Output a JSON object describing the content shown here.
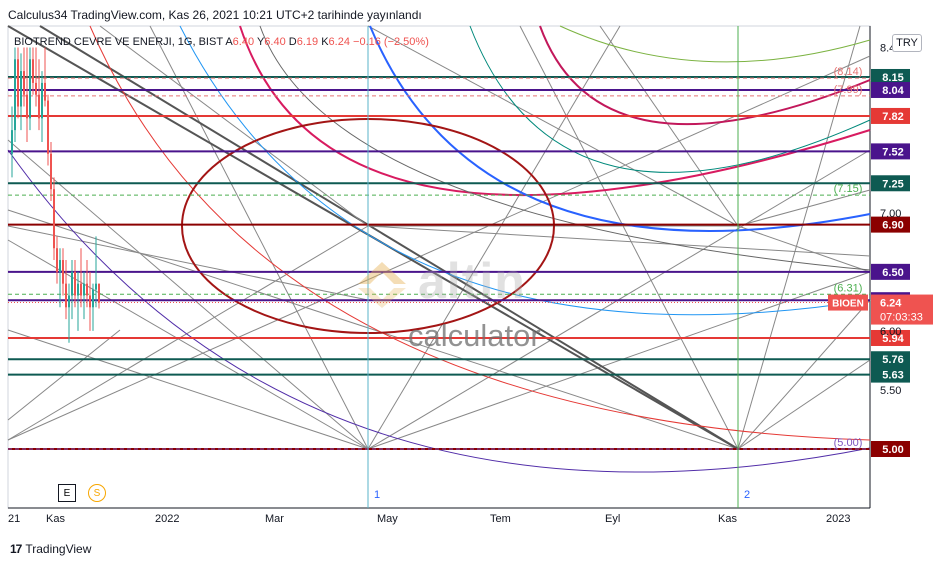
{
  "header": {
    "publish_line": "Calculus34 TradingView.com, Kas 26, 2021 10:21 UTC+2 tarihinde yayınlandı"
  },
  "legend": {
    "symbol": "BIOTREND CEVRE VE ENERJI, 1G, BIST",
    "ohlc": [
      {
        "k": "A",
        "v": "6.40"
      },
      {
        "k": "Y",
        "v": "6.40"
      },
      {
        "k": "D",
        "v": "6.19"
      },
      {
        "k": "K",
        "v": "6.24"
      }
    ],
    "change": "−0.16 (−2.50%)"
  },
  "currency_button": "TRY",
  "price_badge": {
    "ticker": "BIOEN",
    "price": "6.24",
    "countdown": "07:03:33"
  },
  "watermark": {
    "brand": "altin",
    "sub": "calculator"
  },
  "bottom_buttons": {
    "e": "E",
    "s": "S"
  },
  "footer": {
    "brand": "TradingView",
    "logo": "17"
  },
  "colors": {
    "teal": "#0e5a52",
    "purple": "#4a148c",
    "red": "#e53935",
    "darkred": "#8b0000",
    "green_label": "#4caf50"
  },
  "chart_data": {
    "type": "line",
    "y_axis_range": [
      4.0,
      8.4
    ],
    "y_tick_labels": [
      "8.40",
      "7.00",
      "6.00",
      "5.50"
    ],
    "y_ticks": [
      8.4,
      7.0,
      6.0,
      5.5
    ],
    "x_labels": [
      "21",
      "Kas",
      "2022",
      "Mar",
      "May",
      "Tem",
      "Eyl",
      "Kas",
      "2023"
    ],
    "cycle_markers": [
      "1",
      "2"
    ],
    "horizontal_levels": [
      {
        "value": 8.15,
        "label": "8.15",
        "color": "#0e5a52"
      },
      {
        "value": 8.04,
        "label": "8.04",
        "color": "#4a148c"
      },
      {
        "value": 7.82,
        "label": "7.82",
        "color": "#e53935"
      },
      {
        "value": 7.52,
        "label": "7.52",
        "color": "#4a148c"
      },
      {
        "value": 7.25,
        "label": "7.25",
        "color": "#0e5a52"
      },
      {
        "value": 6.9,
        "label": "6.90",
        "color": "#8b0000"
      },
      {
        "value": 6.5,
        "label": "6.50",
        "color": "#4a148c"
      },
      {
        "value": 6.26,
        "label": "6.26",
        "color": "#4a148c"
      },
      {
        "value": 5.94,
        "label": "5.94",
        "color": "#e53935"
      },
      {
        "value": 5.76,
        "label": "5.76",
        "color": "#0e5a52"
      },
      {
        "value": 5.63,
        "label": "5.63",
        "color": "#0e5a52"
      },
      {
        "value": 5.0,
        "label": "5.00",
        "color": "#8b0000"
      }
    ],
    "dashed_levels": [
      {
        "value": 8.14,
        "label": "(8.14)",
        "color": "#e57373"
      },
      {
        "value": 7.99,
        "label": "(7.99)",
        "color": "#e57373"
      },
      {
        "value": 7.15,
        "label": "(7.15)",
        "color": "#4caf50"
      },
      {
        "value": 6.31,
        "label": "(6.31)",
        "color": "#4caf50"
      },
      {
        "value": 5.0,
        "label": "(5.00)",
        "color": "#7e57c2"
      }
    ],
    "last_price": 6.24
  }
}
